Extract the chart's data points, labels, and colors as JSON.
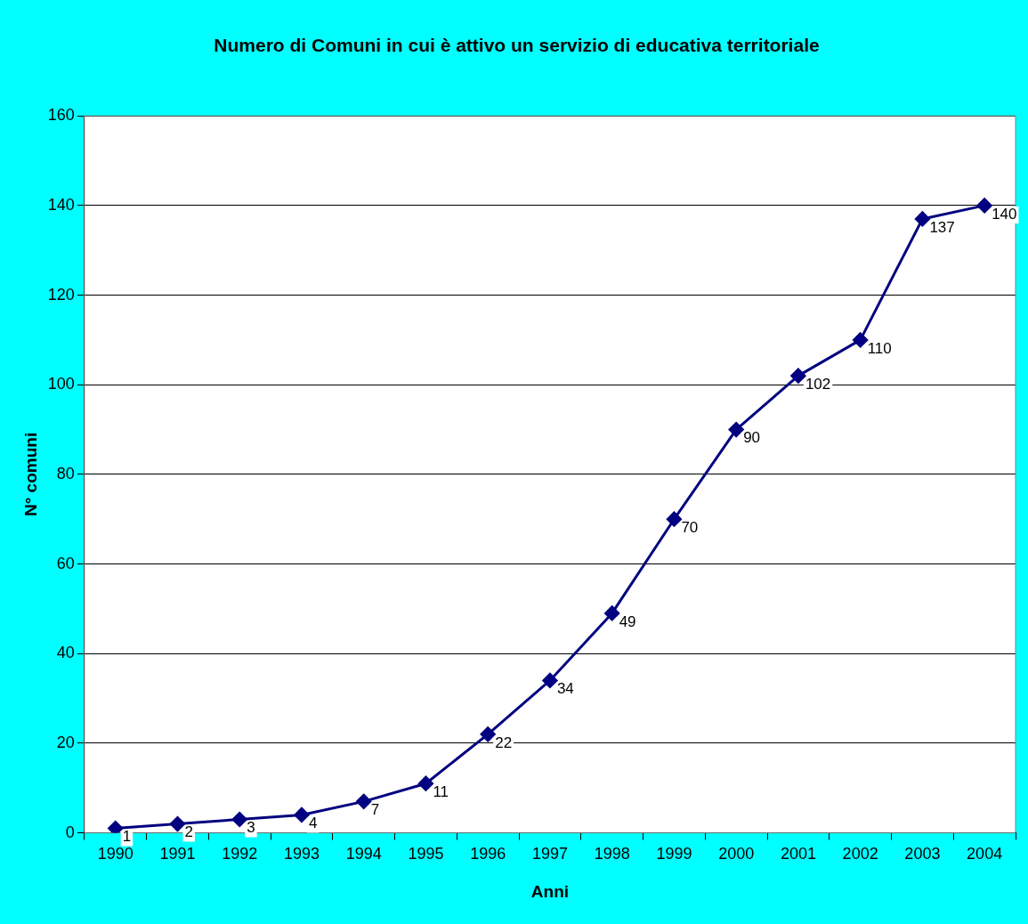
{
  "chart_data": {
    "type": "line",
    "title": "Numero di Comuni in cui è attivo un servizio di educativa territoriale",
    "xlabel": "Anni",
    "ylabel": "N° comuni",
    "categories": [
      "1990",
      "1991",
      "1992",
      "1993",
      "1994",
      "1995",
      "1996",
      "1997",
      "1998",
      "1999",
      "2000",
      "2001",
      "2002",
      "2003",
      "2004"
    ],
    "series": [
      {
        "color": "#000080",
        "values": [
          1,
          2,
          3,
          4,
          7,
          11,
          22,
          34,
          49,
          70,
          90,
          102,
          110,
          137,
          140
        ]
      }
    ],
    "ylim": [
      0,
      160
    ],
    "yticks": [
      0,
      20,
      40,
      60,
      80,
      100,
      120,
      140,
      160
    ],
    "grid": "y",
    "legend": false,
    "marker": "diamond",
    "line_style": "solid",
    "data_labels": true
  }
}
